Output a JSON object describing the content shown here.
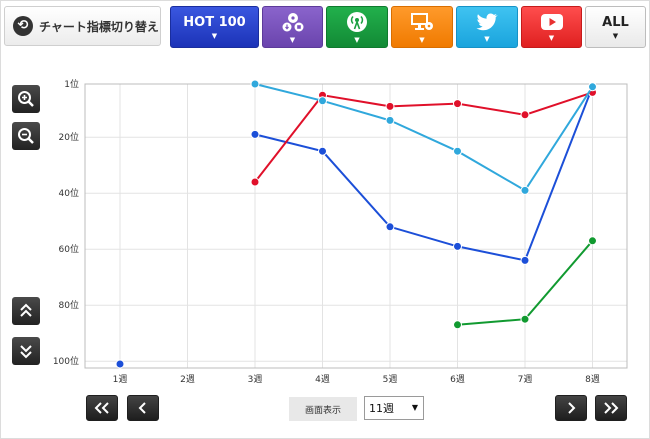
{
  "toolbar": {
    "switch_label": "チャート指標切り替え",
    "switch_icon": "refresh-icon",
    "tabs": [
      {
        "id": "hot100",
        "label": "HOT 100",
        "color": "#2440cc"
      },
      {
        "id": "package",
        "label": "",
        "icon": "cd-download-icon",
        "color": "#7a52bd"
      },
      {
        "id": "radio",
        "label": "",
        "icon": "radio-antenna-icon",
        "color": "#19a040"
      },
      {
        "id": "pc",
        "label": "",
        "icon": "pc-lookup-icon",
        "color": "#f58a12"
      },
      {
        "id": "twitter",
        "label": "",
        "icon": "twitter-icon",
        "color": "#2bb3e8"
      },
      {
        "id": "youtube",
        "label": "",
        "icon": "youtube-icon",
        "color": "#e83030"
      },
      {
        "id": "all",
        "label": "ALL",
        "color": "#f2f2f2"
      }
    ]
  },
  "controls": {
    "display_label": "画面表示",
    "display_value": "11週"
  },
  "chart_data": {
    "type": "line",
    "categories": [
      "1週",
      "2週",
      "3週",
      "4週",
      "5週",
      "6週",
      "7週",
      "8週"
    ],
    "y_ticks": [
      "1位",
      "20位",
      "40位",
      "60位",
      "80位",
      "100位"
    ],
    "y_tick_values": [
      1,
      20,
      40,
      60,
      80,
      100
    ],
    "ylim": [
      1,
      101
    ],
    "y_inverted": true,
    "grid": true,
    "series": [
      {
        "color": "#1c4fd8",
        "values": [
          101,
          null,
          19,
          25,
          52,
          59,
          64,
          2
        ]
      },
      {
        "color": "#e0102a",
        "values": [
          null,
          null,
          36,
          5,
          9,
          8,
          12,
          4
        ]
      },
      {
        "color": "#30a8dc",
        "values": [
          null,
          null,
          1,
          7,
          14,
          25,
          39,
          2
        ]
      },
      {
        "color": "#119a30",
        "values": [
          null,
          null,
          null,
          null,
          null,
          87,
          85,
          57
        ]
      }
    ]
  }
}
